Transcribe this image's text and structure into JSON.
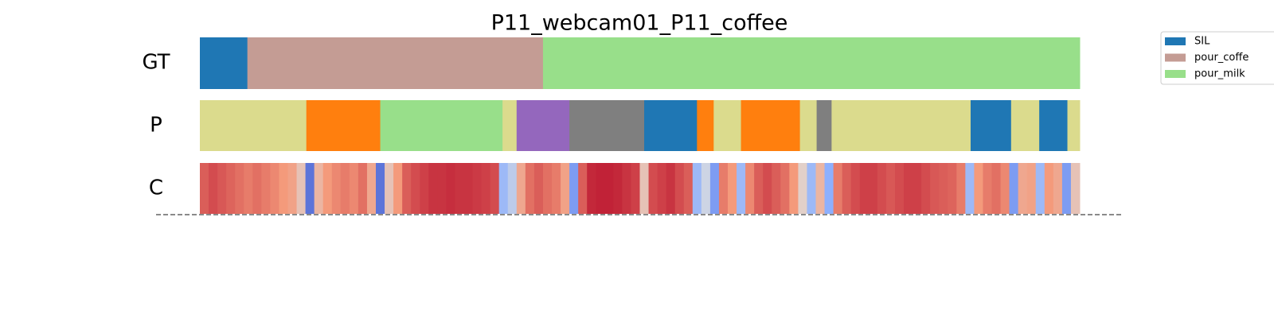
{
  "title": "P11_webcam01_P11_coffee",
  "rows": {
    "gt": "GT",
    "p": "P",
    "c": "C"
  },
  "legend": [
    {
      "name": "SIL",
      "color": "#1f77b4"
    },
    {
      "name": "pour_coffe",
      "color": "#c49c94"
    },
    {
      "name": "pour_milk",
      "color": "#98df8a"
    }
  ],
  "gt_segments": [
    {
      "start": 0,
      "end": 5.4,
      "color": "#1f77b4"
    },
    {
      "start": 5.4,
      "end": 39.0,
      "color": "#c49c94"
    },
    {
      "start": 39.0,
      "end": 100,
      "color": "#98df8a"
    }
  ],
  "p_segments": [
    {
      "start": 0,
      "end": 12.1,
      "color": "#dbdb8d"
    },
    {
      "start": 12.1,
      "end": 20.5,
      "color": "#ff7f0e"
    },
    {
      "start": 20.5,
      "end": 34.4,
      "color": "#98df8a"
    },
    {
      "start": 34.4,
      "end": 36.0,
      "color": "#dbdb8d"
    },
    {
      "start": 36.0,
      "end": 42.0,
      "color": "#9467bd"
    },
    {
      "start": 42.0,
      "end": 50.5,
      "color": "#7f7f7f"
    },
    {
      "start": 50.5,
      "end": 56.5,
      "color": "#1f77b4"
    },
    {
      "start": 56.5,
      "end": 58.4,
      "color": "#ff7f0e"
    },
    {
      "start": 58.4,
      "end": 61.5,
      "color": "#dbdb8d"
    },
    {
      "start": 61.5,
      "end": 68.2,
      "color": "#ff7f0e"
    },
    {
      "start": 68.2,
      "end": 70.1,
      "color": "#dbdb8d"
    },
    {
      "start": 70.1,
      "end": 71.8,
      "color": "#7f7f7f"
    },
    {
      "start": 71.8,
      "end": 87.6,
      "color": "#dbdb8d"
    },
    {
      "start": 87.6,
      "end": 92.2,
      "color": "#1f77b4"
    },
    {
      "start": 92.2,
      "end": 95.4,
      "color": "#dbdb8d"
    },
    {
      "start": 95.4,
      "end": 98.6,
      "color": "#1f77b4"
    },
    {
      "start": 98.6,
      "end": 100,
      "color": "#dbdb8d"
    }
  ],
  "confidence": [
    0.85,
    0.88,
    0.86,
    0.84,
    0.82,
    0.8,
    0.82,
    0.8,
    0.78,
    0.75,
    0.72,
    0.6,
    0.1,
    0.65,
    0.75,
    0.78,
    0.8,
    0.78,
    0.82,
    0.7,
    0.1,
    0.6,
    0.75,
    0.85,
    0.88,
    0.9,
    0.92,
    0.92,
    0.93,
    0.92,
    0.92,
    0.91,
    0.9,
    0.88,
    0.3,
    0.4,
    0.7,
    0.82,
    0.85,
    0.82,
    0.8,
    0.72,
    0.2,
    0.85,
    0.94,
    0.95,
    0.95,
    0.94,
    0.92,
    0.9,
    0.6,
    0.88,
    0.9,
    0.92,
    0.88,
    0.85,
    0.3,
    0.45,
    0.2,
    0.8,
    0.75,
    0.3,
    0.78,
    0.85,
    0.88,
    0.85,
    0.82,
    0.75,
    0.55,
    0.3,
    0.65,
    0.25,
    0.8,
    0.85,
    0.88,
    0.9,
    0.9,
    0.88,
    0.86,
    0.88,
    0.9,
    0.9,
    0.88,
    0.86,
    0.85,
    0.84,
    0.8,
    0.3,
    0.75,
    0.8,
    0.82,
    0.78,
    0.2,
    0.7,
    0.72,
    0.3,
    0.75,
    0.7,
    0.2,
    0.6
  ]
}
